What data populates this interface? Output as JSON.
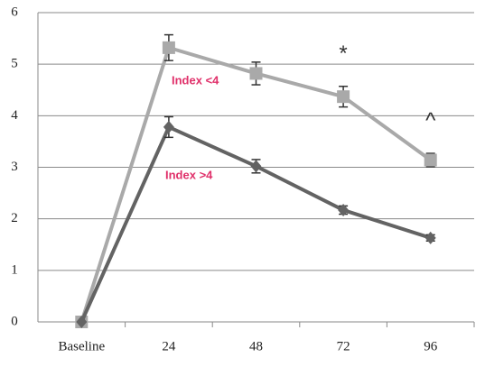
{
  "chart_data": {
    "type": "line",
    "categories": [
      "Baseline",
      "24",
      "48",
      "72",
      "96"
    ],
    "series": [
      {
        "name": "Index <4",
        "color": "#a9a9a9",
        "marker": "square",
        "values": [
          0,
          5.32,
          4.82,
          4.37,
          3.14
        ],
        "errors": [
          null,
          0.25,
          0.22,
          0.2,
          0.13
        ]
      },
      {
        "name": "Index >4",
        "color": "#636363",
        "marker": "diamond",
        "values": [
          0,
          3.78,
          3.02,
          2.17,
          1.63
        ],
        "errors": [
          null,
          0.2,
          0.13,
          0.08,
          0.06
        ]
      }
    ],
    "annotations": [
      {
        "text": "*",
        "category": "72"
      },
      {
        "text": "^",
        "category": "96"
      }
    ],
    "ylim": [
      0,
      6
    ],
    "yticks": [
      0,
      1,
      2,
      3,
      4,
      5,
      6
    ],
    "grid": true
  }
}
